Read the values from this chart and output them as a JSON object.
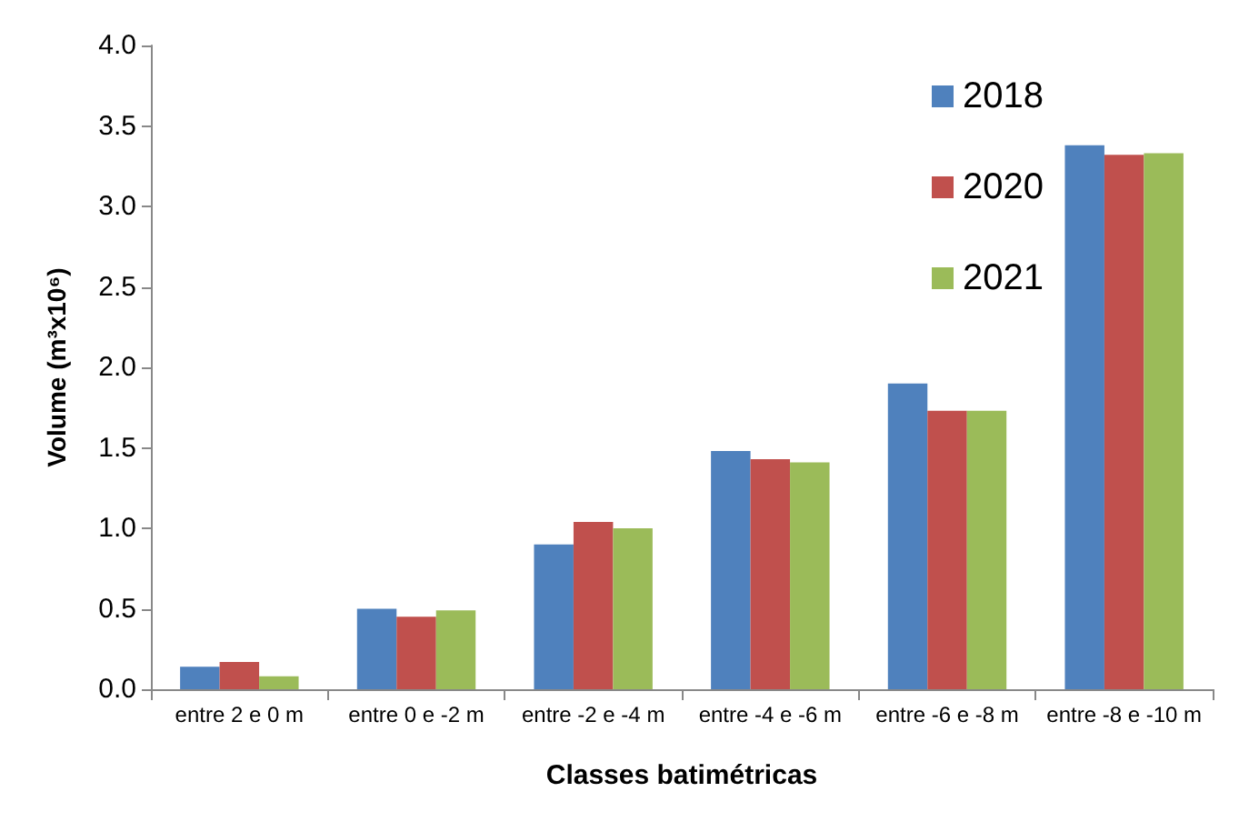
{
  "chart_data": {
    "type": "bar",
    "xlabel": "Classes batimétricas",
    "ylabel": "Volume (m³x10⁶)",
    "categories": [
      "entre 2 e 0 m",
      "entre 0 e -2 m",
      "entre -2 e -4 m",
      "entre -4 e -6 m",
      "entre -6 e -8 m",
      "entre -8 e -10 m"
    ],
    "series": [
      {
        "name": "2018",
        "color": "#4f81bd",
        "values": [
          0.14,
          0.5,
          0.9,
          1.48,
          1.9,
          3.38
        ]
      },
      {
        "name": "2020",
        "color": "#c0504d",
        "values": [
          0.17,
          0.45,
          1.04,
          1.43,
          1.73,
          3.32
        ]
      },
      {
        "name": "2021",
        "color": "#9bbb59",
        "values": [
          0.08,
          0.49,
          1.0,
          1.41,
          1.73,
          3.33
        ]
      }
    ],
    "ylim": [
      0,
      4
    ],
    "yticks": [
      {
        "value": 0,
        "label": "0.0"
      },
      0.5,
      {
        "value": 1,
        "label": "1.0"
      },
      1.5,
      {
        "value": 2,
        "label": "2.0"
      },
      2.5,
      {
        "value": 3,
        "label": "3.0"
      },
      3.5,
      {
        "value": 4,
        "label": "4.0"
      }
    ],
    "grid": false,
    "legend": "top right"
  }
}
